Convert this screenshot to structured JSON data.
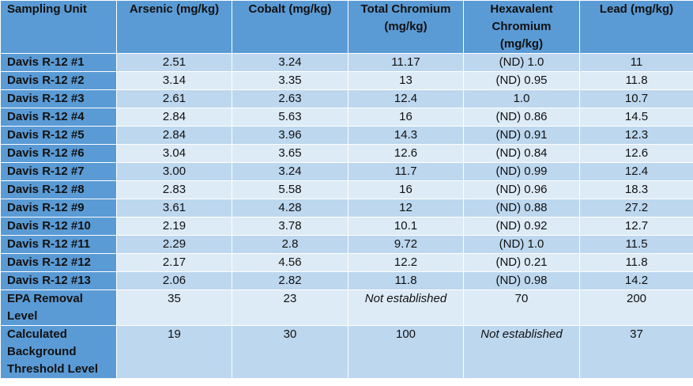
{
  "table": {
    "header": [
      "Sampling Unit",
      "Arsenic (mg/kg)",
      "Cobalt (mg/kg)",
      "Total Chromium (mg/kg)",
      "Hexavalent Chromium (mg/kg)",
      "Lead (mg/kg)"
    ],
    "rows": [
      [
        "Davis R-12 #1",
        "2.51",
        "3.24",
        "11.17",
        "(ND) 1.0",
        "11"
      ],
      [
        "Davis R-12 #2",
        "3.14",
        "3.35",
        "13",
        "(ND) 0.95",
        "11.8"
      ],
      [
        "Davis R-12 #3",
        "2.61",
        "2.63",
        "12.4",
        "1.0",
        "10.7"
      ],
      [
        "Davis R-12 #4",
        "2.84",
        "5.63",
        "16",
        "(ND) 0.86",
        "14.5"
      ],
      [
        "Davis R-12 #5",
        "2.84",
        "3.96",
        "14.3",
        "(ND) 0.91",
        "12.3"
      ],
      [
        "Davis R-12 #6",
        "3.04",
        "3.65",
        "12.6",
        "(ND) 0.84",
        "12.6"
      ],
      [
        "Davis R-12 #7",
        "3.00",
        "3.24",
        "11.7",
        "(ND) 0.99",
        "12.4"
      ],
      [
        "Davis R-12 #8",
        "2.83",
        "5.58",
        "16",
        "(ND) 0.96",
        "18.3"
      ],
      [
        "Davis R-12 #9",
        "3.61",
        "4.28",
        "12",
        "(ND) 0.88",
        "27.2"
      ],
      [
        "Davis R-12 #10",
        "2.19",
        "3.78",
        "10.1",
        "(ND) 0.92",
        "12.7"
      ],
      [
        "Davis R-12 #11",
        "2.29",
        "2.8",
        "9.72",
        "(ND) 1.0",
        "11.5"
      ],
      [
        "Davis R-12 #12",
        "2.17",
        "4.56",
        "12.2",
        "(ND) 0.21",
        "11.8"
      ],
      [
        "Davis R-12 #13",
        "2.06",
        "2.82",
        "11.8",
        "(ND) 0.98",
        "14.2"
      ],
      [
        "EPA Removal Level",
        "35",
        "23",
        "Not established",
        "70",
        "200"
      ],
      [
        "Calculated Background Threshold Level",
        "19",
        "30",
        "100",
        "Not established",
        "37"
      ]
    ]
  }
}
